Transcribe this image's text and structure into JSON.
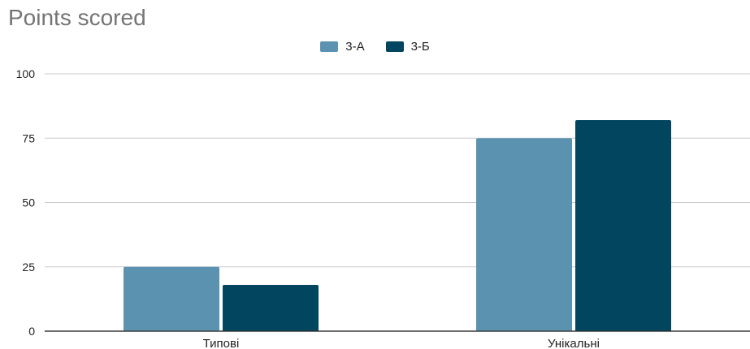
{
  "chart_data": {
    "type": "bar",
    "title": "Points scored",
    "categories": [
      "Типові",
      "Унікальні"
    ],
    "series": [
      {
        "name": "3-А",
        "values": [
          25,
          75
        ],
        "color": "#5b92b0"
      },
      {
        "name": "3-Б",
        "values": [
          18,
          82
        ],
        "color": "#02455f"
      }
    ],
    "ylim": [
      0,
      100
    ],
    "yticks": [
      0,
      25,
      50,
      75,
      100
    ],
    "grid": true,
    "legend_position": "top-center"
  }
}
